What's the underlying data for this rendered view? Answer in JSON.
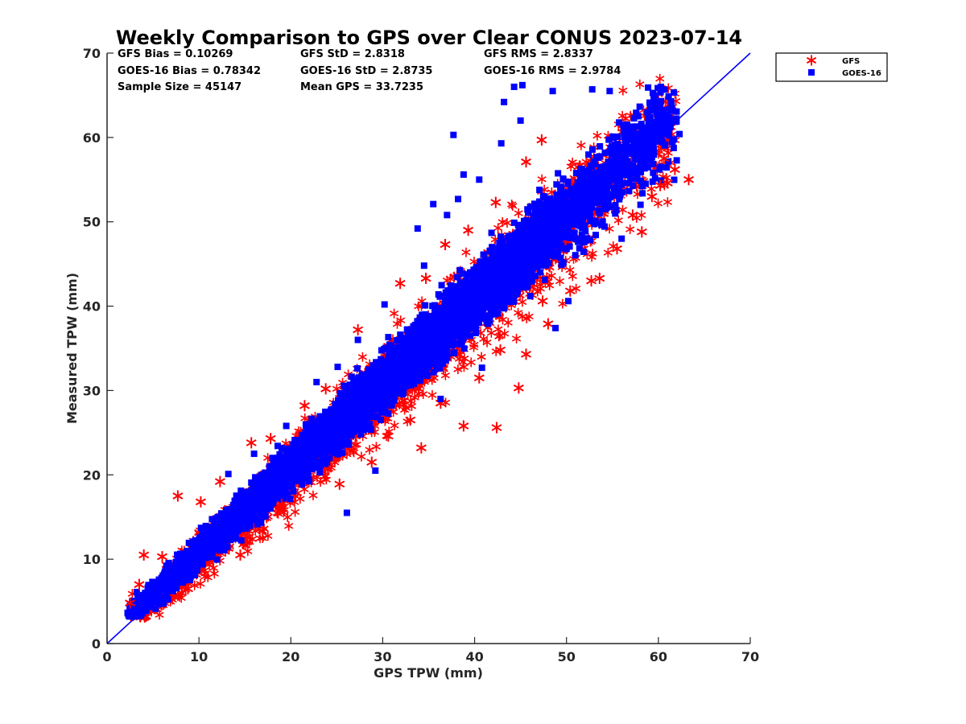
{
  "chart_data": {
    "type": "scatter",
    "title": "Weekly Comparison to GPS over Clear CONUS 2023-07-14",
    "xlabel": "GPS TPW (mm)",
    "ylabel": "Measured TPW (mm)",
    "xlim": [
      0,
      70
    ],
    "ylim": [
      0,
      70
    ],
    "xticks": [
      "0",
      "10",
      "20",
      "30",
      "40",
      "50",
      "60",
      "70"
    ],
    "yticks": [
      "0",
      "10",
      "20",
      "30",
      "40",
      "50",
      "60",
      "70"
    ],
    "grid": false,
    "legend_position": "outside-top-right",
    "stats": [
      [
        "GFS Bias = 0.10269",
        "GFS StD = 2.8318",
        "GFS RMS = 2.8337"
      ],
      [
        "GOES-16 Bias = 0.78342",
        "GOES-16 StD = 2.8735",
        "GOES-16 RMS = 2.9784"
      ],
      [
        "Sample Size = 45147",
        "Mean GPS = 33.7235",
        ""
      ]
    ],
    "reference_line": {
      "from": [
        0,
        0
      ],
      "to": [
        70,
        70
      ],
      "color": "#0000ff"
    },
    "series": [
      {
        "name": "GFS",
        "marker": "asterisk",
        "color": "#ff0000",
        "bias": 0.10269,
        "std": 2.8318,
        "rms": 2.8337,
        "points": [
          [
            2.5,
            4.8
          ],
          [
            3.5,
            7.0
          ],
          [
            4.0,
            10.5
          ],
          [
            6.0,
            10.3
          ],
          [
            7.7,
            17.5
          ],
          [
            10.2,
            16.8
          ],
          [
            12.3,
            19.2
          ],
          [
            15.7,
            23.8
          ],
          [
            17.8,
            24.3
          ],
          [
            21.5,
            28.2
          ],
          [
            23.8,
            30.2
          ],
          [
            27.3,
            37.2
          ],
          [
            31.9,
            42.7
          ],
          [
            34.7,
            43.3
          ],
          [
            36.8,
            47.3
          ],
          [
            39.3,
            49.0
          ],
          [
            42.3,
            52.3
          ],
          [
            45.6,
            57.1
          ],
          [
            47.3,
            59.7
          ],
          [
            25.3,
            18.9
          ],
          [
            28.8,
            21.5
          ],
          [
            30.6,
            24.6
          ],
          [
            33.0,
            26.5
          ],
          [
            34.2,
            23.2
          ],
          [
            38.8,
            25.8
          ],
          [
            42.4,
            25.6
          ],
          [
            44.8,
            30.3
          ],
          [
            45.6,
            34.3
          ],
          [
            48.0,
            37.9
          ],
          [
            50.4,
            41.8
          ],
          [
            52.7,
            43.0
          ],
          [
            53.6,
            43.3
          ],
          [
            55.5,
            46.8
          ],
          [
            57.2,
            50.8
          ],
          [
            58.2,
            48.8
          ],
          [
            59.3,
            53.0
          ],
          [
            60.2,
            54.3
          ],
          [
            61.0,
            54.6
          ],
          [
            61.8,
            56.2
          ],
          [
            63.3,
            55.0
          ],
          [
            60.6,
            57.5
          ],
          [
            42.8,
            34.8
          ],
          [
            47.4,
            40.6
          ],
          [
            36.3,
            28.5
          ],
          [
            40.5,
            31.5
          ],
          [
            19.0,
            16.5
          ],
          [
            14.5,
            10.5
          ],
          [
            8.8,
            6.5
          ]
        ]
      },
      {
        "name": "GOES-16",
        "marker": "square",
        "color": "#0000ff",
        "bias": 0.78342,
        "std": 2.8735,
        "rms": 2.9784,
        "points": [
          [
            37.7,
            60.3
          ],
          [
            43.2,
            64.2
          ],
          [
            44.3,
            66.0
          ],
          [
            45.2,
            66.2
          ],
          [
            48.5,
            65.5
          ],
          [
            52.8,
            65.7
          ],
          [
            54.7,
            65.5
          ],
          [
            59.5,
            64.6
          ],
          [
            62.3,
            60.4
          ],
          [
            38.8,
            55.6
          ],
          [
            37.0,
            50.8
          ],
          [
            38.2,
            52.7
          ],
          [
            35.5,
            52.1
          ],
          [
            33.8,
            49.2
          ],
          [
            34.5,
            44.8
          ],
          [
            30.2,
            40.2
          ],
          [
            27.3,
            36.0
          ],
          [
            25.1,
            32.8
          ],
          [
            22.8,
            31.0
          ],
          [
            19.5,
            25.8
          ],
          [
            16.0,
            22.5
          ],
          [
            13.2,
            20.1
          ],
          [
            29.2,
            20.5
          ],
          [
            36.3,
            29.0
          ],
          [
            40.8,
            32.7
          ],
          [
            48.8,
            37.4
          ],
          [
            50.2,
            40.6
          ],
          [
            56.0,
            48.0
          ],
          [
            42.9,
            59.3
          ],
          [
            45.0,
            62.0
          ],
          [
            40.5,
            55.0
          ],
          [
            26.1,
            15.5
          ],
          [
            44.3,
            43.4
          ],
          [
            50.8,
            51.2
          ],
          [
            18.0,
            22.0
          ],
          [
            55.7,
            54.1
          ]
        ]
      }
    ]
  }
}
